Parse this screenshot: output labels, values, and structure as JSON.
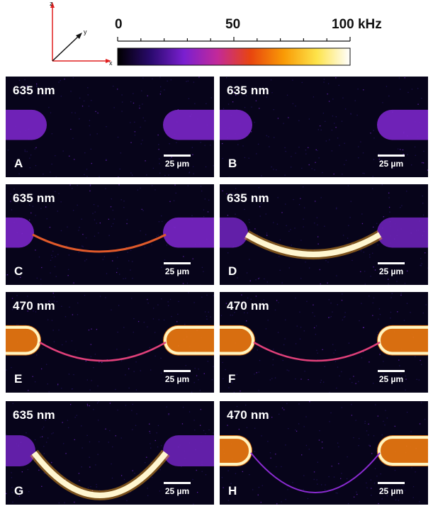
{
  "axes_indicator": {
    "z": "z",
    "y": "y",
    "x": "x"
  },
  "colorbar": {
    "tick_labels": [
      "0",
      "50",
      "100 kHz"
    ],
    "colors": [
      "#000000",
      "#2a0a6e",
      "#7a1fd0",
      "#c2299a",
      "#e8450f",
      "#f99a05",
      "#fde34a",
      "#ffffff"
    ]
  },
  "scale_bar_label": "25 µm",
  "panels": [
    {
      "letter": "A",
      "wavelength": "635 nm"
    },
    {
      "letter": "B",
      "wavelength": "635 nm"
    },
    {
      "letter": "C",
      "wavelength": "635 nm"
    },
    {
      "letter": "D",
      "wavelength": "635 nm"
    },
    {
      "letter": "E",
      "wavelength": "470 nm"
    },
    {
      "letter": "F",
      "wavelength": "470 nm"
    },
    {
      "letter": "G",
      "wavelength": "635 nm"
    },
    {
      "letter": "H",
      "wavelength": "470 nm"
    }
  ]
}
